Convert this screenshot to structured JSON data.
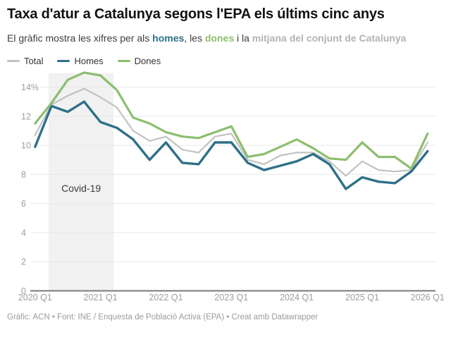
{
  "header": {
    "title": "Taxa d'atur a Catalunya segons l'EPA els últims cinc anys",
    "subtitle_parts": {
      "prefix": "El gràfic mostra les xifres per als ",
      "homes": "homes",
      "mid1": ", les ",
      "dones": "dones",
      "mid2": " i la ",
      "mitjana": "mitjana del conjunt de Catalunya"
    }
  },
  "legend": {
    "items": [
      {
        "label": "Total",
        "color": "#c2c2c2"
      },
      {
        "label": "Homes",
        "color": "#2e7089"
      },
      {
        "label": "Dones",
        "color": "#8cbe6e"
      }
    ]
  },
  "colors": {
    "total": "#c2c2c2",
    "homes": "#2e7089",
    "dones": "#8cbe6e",
    "mitjana_text": "#b3b3b3",
    "axis_label": "#9d9d9d",
    "axis_line": "#7a7a7a",
    "gridline": "#e7e7e7",
    "annotation_band": "#f1f1f1"
  },
  "chart_data": {
    "type": "line",
    "title": "Taxa d'atur a Catalunya segons l'EPA els últims cinc anys",
    "unit": "%",
    "x": [
      "2020 Q1",
      "2020 Q2",
      "2020 Q3",
      "2020 Q4",
      "2021 Q1",
      "2021 Q2",
      "2021 Q3",
      "2021 Q4",
      "2022 Q1",
      "2022 Q2",
      "2022 Q3",
      "2022 Q4",
      "2023 Q1",
      "2023 Q2",
      "2023 Q3",
      "2023 Q4",
      "2024 Q1",
      "2024 Q2",
      "2024 Q3",
      "2024 Q4",
      "2025 Q1",
      "2025 Q2",
      "2025 Q3",
      "2025 Q4",
      "2026 Q1"
    ],
    "x_tick_labels": [
      "2020 Q1",
      "2021 Q1",
      "2022 Q1",
      "2023 Q1",
      "2024 Q1",
      "2025 Q1",
      "2026 Q1"
    ],
    "x_tick_indices": [
      0,
      4,
      8,
      12,
      16,
      20,
      24
    ],
    "y_ticks": [
      {
        "value": 0,
        "label": "0"
      },
      {
        "value": 2,
        "label": "2"
      },
      {
        "value": 4,
        "label": "4"
      },
      {
        "value": 6,
        "label": "6"
      },
      {
        "value": 8,
        "label": "8"
      },
      {
        "value": 10,
        "label": "10"
      },
      {
        "value": 12,
        "label": "12"
      },
      {
        "value": 14,
        "label": "14%"
      }
    ],
    "ylim": [
      0,
      15.2
    ],
    "grid": true,
    "legend_position": "top-left",
    "series": [
      {
        "name": "Total",
        "color": "#c2c2c2",
        "width": 2.2,
        "values": [
          10.7,
          12.8,
          13.4,
          13.9,
          13.3,
          12.6,
          11.0,
          10.3,
          10.6,
          9.7,
          9.5,
          10.6,
          10.8,
          9.0,
          8.7,
          9.3,
          9.5,
          9.5,
          8.9,
          7.9,
          8.9,
          8.3,
          8.2,
          8.3,
          10.2
        ]
      },
      {
        "name": "Homes",
        "color": "#2e7089",
        "width": 3.4,
        "values": [
          9.9,
          12.7,
          12.3,
          13.0,
          11.6,
          11.2,
          10.4,
          9.0,
          10.2,
          8.8,
          8.7,
          10.2,
          10.2,
          8.8,
          8.3,
          8.6,
          8.9,
          9.4,
          8.7,
          7.0,
          7.8,
          7.5,
          7.4,
          8.2,
          9.6
        ]
      },
      {
        "name": "Dones",
        "color": "#8cbe6e",
        "width": 3.2,
        "values": [
          11.5,
          12.9,
          14.5,
          15.0,
          14.8,
          13.8,
          11.9,
          11.5,
          10.9,
          10.6,
          10.5,
          10.9,
          11.3,
          9.2,
          9.4,
          9.9,
          10.4,
          9.8,
          9.1,
          9.0,
          10.2,
          9.2,
          9.2,
          8.4,
          10.8
        ]
      }
    ],
    "annotation": {
      "label": "Covid-19",
      "x_from_index": 0.83,
      "x_to_index": 4.8,
      "fill": "#f1f1f1"
    }
  },
  "footer": {
    "text": "Gràfic: ACN • Font: INE / Enquesta de Població Activa (EPA) • Creat amb Datawrapper"
  }
}
